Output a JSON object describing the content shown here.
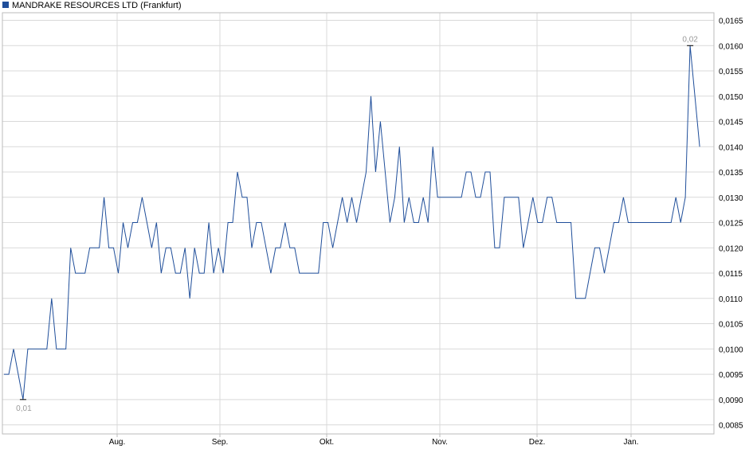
{
  "chart_data": {
    "type": "line",
    "legend": {
      "label": "MANDRAKE RESOURCES LTD (Frankfurt)",
      "placement": "top-left"
    },
    "x_labels": [
      "Aug.",
      "Sep.",
      "Okt.",
      "Nov.",
      "Dez.",
      "Jan."
    ],
    "y_ticks": [
      "0,0085",
      "0,0090",
      "0,0095",
      "0,0100",
      "0,0105",
      "0,0110",
      "0,0115",
      "0,0120",
      "0,0125",
      "0,0130",
      "0,0135",
      "0,0140",
      "0,0145",
      "0,0150",
      "0,0155",
      "0,0160",
      "0,0165"
    ],
    "ylim": [
      0.00832,
      0.01665
    ],
    "grid": true,
    "min_label": "0,01",
    "max_label": "0,02",
    "series": [
      {
        "color": "#1f4e9a",
        "values": [
          0.0095,
          0.0095,
          0.01,
          0.0095,
          0.009,
          0.01,
          0.01,
          0.01,
          0.01,
          0.01,
          0.011,
          0.01,
          0.01,
          0.01,
          0.012,
          0.0115,
          0.0115,
          0.0115,
          0.012,
          0.012,
          0.012,
          0.013,
          0.012,
          0.012,
          0.0115,
          0.0125,
          0.012,
          0.0125,
          0.0125,
          0.013,
          0.0125,
          0.012,
          0.0125,
          0.0115,
          0.012,
          0.012,
          0.0115,
          0.0115,
          0.012,
          0.011,
          0.012,
          0.0115,
          0.0115,
          0.0125,
          0.0115,
          0.012,
          0.0115,
          0.0125,
          0.0125,
          0.0135,
          0.013,
          0.013,
          0.012,
          0.0125,
          0.0125,
          0.012,
          0.0115,
          0.012,
          0.012,
          0.0125,
          0.012,
          0.012,
          0.0115,
          0.0115,
          0.0115,
          0.0115,
          0.0115,
          0.0125,
          0.0125,
          0.012,
          0.0125,
          0.013,
          0.0125,
          0.013,
          0.0125,
          0.013,
          0.0135,
          0.015,
          0.0135,
          0.0145,
          0.0135,
          0.0125,
          0.013,
          0.014,
          0.0125,
          0.013,
          0.0125,
          0.0125,
          0.013,
          0.0125,
          0.014,
          0.013,
          0.013,
          0.013,
          0.013,
          0.013,
          0.013,
          0.0135,
          0.0135,
          0.013,
          0.013,
          0.0135,
          0.0135,
          0.012,
          0.012,
          0.013,
          0.013,
          0.013,
          0.013,
          0.012,
          0.0125,
          0.013,
          0.0125,
          0.0125,
          0.013,
          0.013,
          0.0125,
          0.0125,
          0.0125,
          0.0125,
          0.011,
          0.011,
          0.011,
          0.0115,
          0.012,
          0.012,
          0.0115,
          0.012,
          0.0125,
          0.0125,
          0.013,
          0.0125,
          0.0125,
          0.0125,
          0.0125,
          0.0125,
          0.0125,
          0.0125,
          0.0125,
          0.0125,
          0.0125,
          0.013,
          0.0125,
          0.013,
          0.016,
          0.015,
          0.014
        ]
      }
    ]
  },
  "colors": {
    "line": "#1f4e9a",
    "grid": "#d9d9d9",
    "frame": "#bbbbbb",
    "legend_swatch": "#1f4e9a"
  }
}
